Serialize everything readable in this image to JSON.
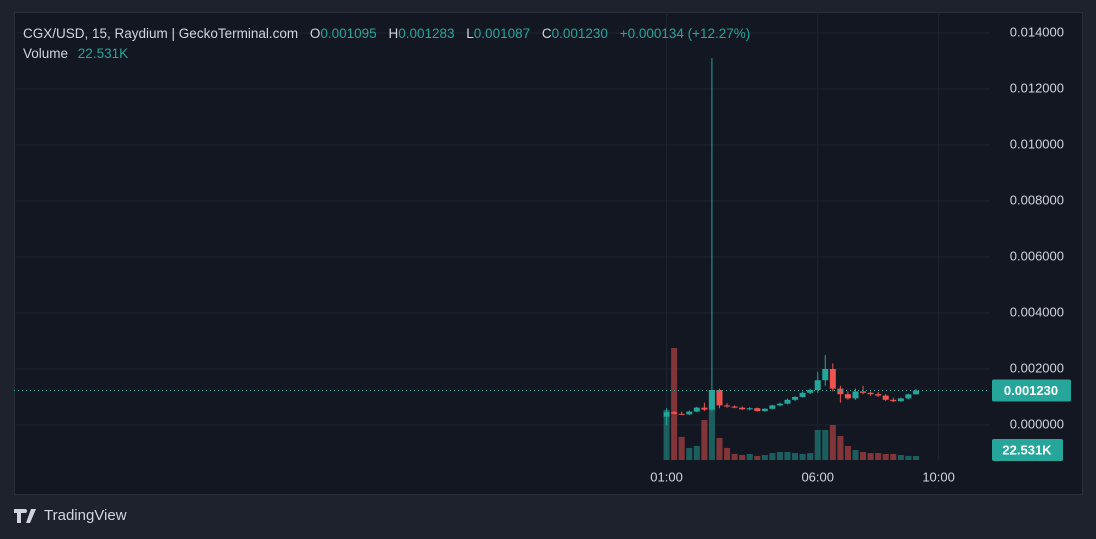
{
  "chart_data": {
    "type": "candlestick",
    "title": "CGX/USD, 15, Raydium | GeckoTerminal.com",
    "legend": {
      "o": "O",
      "open": "0.001095",
      "h": "H",
      "high": "0.001283",
      "l": "L",
      "low": "0.001087",
      "c": "C",
      "close": "0.001230",
      "change": "+0.000134 (+12.27%)",
      "volume_name": "Volume",
      "volume": "22.531K"
    },
    "x": [
      1,
      1.25,
      1.5,
      1.75,
      2,
      2.25,
      2.5,
      2.75,
      3,
      3.25,
      3.5,
      3.75,
      4,
      4.25,
      4.5,
      4.75,
      5,
      5.25,
      5.5,
      5.75,
      6,
      6.25,
      6.5,
      6.75,
      7,
      7.25,
      7.5,
      7.75,
      8,
      8.25,
      8.5,
      8.75,
      9,
      9.25
    ],
    "open": [
      0.0003,
      0.00046,
      0.0004,
      0.00038,
      0.00048,
      0.00062,
      0.00055,
      0.00125,
      0.0007,
      0.00066,
      0.00062,
      0.00056,
      0.0006,
      0.0005,
      0.00058,
      0.0007,
      0.00076,
      0.0009,
      0.001,
      0.00115,
      0.00125,
      0.0016,
      0.002,
      0.0013,
      0.0011,
      0.00095,
      0.0012,
      0.00115,
      0.0011,
      0.00105,
      0.0009,
      0.00085,
      0.00095,
      0.001095
    ],
    "high": [
      0.0006,
      0.0005,
      0.00048,
      0.00052,
      0.00065,
      0.0008,
      0.0131,
      0.0013,
      0.00078,
      0.0007,
      0.00066,
      0.00064,
      0.00062,
      0.0006,
      0.00072,
      0.0008,
      0.00095,
      0.00104,
      0.0012,
      0.0013,
      0.0019,
      0.0025,
      0.0022,
      0.0014,
      0.0012,
      0.0013,
      0.0014,
      0.0012,
      0.00118,
      0.0011,
      0.00098,
      0.00098,
      0.00112,
      0.001283
    ],
    "low": [
      0.0,
      0.00038,
      0.00036,
      0.00035,
      0.00045,
      0.0005,
      0.0005,
      0.0006,
      0.00062,
      0.0006,
      0.00054,
      0.00052,
      0.00048,
      0.00048,
      0.00056,
      0.00066,
      0.00074,
      0.00086,
      0.00098,
      0.0011,
      0.00115,
      0.0014,
      0.0012,
      0.0008,
      0.0009,
      0.0009,
      0.0011,
      0.00105,
      0.001,
      0.00085,
      0.00082,
      0.00083,
      0.00092,
      0.001087
    ],
    "close": [
      0.00046,
      0.0004,
      0.00038,
      0.00048,
      0.00062,
      0.00055,
      0.00125,
      0.0007,
      0.00066,
      0.00062,
      0.00056,
      0.0006,
      0.0005,
      0.00058,
      0.0007,
      0.00076,
      0.0009,
      0.001,
      0.00115,
      0.00125,
      0.0016,
      0.002,
      0.0013,
      0.0011,
      0.00095,
      0.0012,
      0.00115,
      0.0011,
      0.00105,
      0.0009,
      0.00085,
      0.00095,
      0.001095,
      0.00123
    ],
    "volume": [
      282000,
      630000,
      130000,
      68000,
      79000,
      225000,
      394000,
      124000,
      68000,
      34000,
      28000,
      34000,
      23000,
      28000,
      39000,
      45000,
      45000,
      39000,
      34000,
      39000,
      169000,
      169000,
      197000,
      135000,
      79000,
      56000,
      45000,
      39000,
      39000,
      34000,
      34000,
      28000,
      23000,
      22531
    ],
    "up_color": "#26a69a",
    "down_color": "#ef5350",
    "xlim": [
      -20.59,
      11.7
    ],
    "xticks": [
      {
        "value": 1,
        "label": "01:00"
      },
      {
        "value": 6,
        "label": "06:00"
      },
      {
        "value": 10,
        "label": "10:00"
      }
    ],
    "ylim": [
      -0.00125,
      0.01475
    ],
    "yticks": [
      {
        "value": 0,
        "label": "0.000000"
      },
      {
        "value": 0.002,
        "label": "0.002000"
      },
      {
        "value": 0.004,
        "label": "0.004000"
      },
      {
        "value": 0.006,
        "label": "0.006000"
      },
      {
        "value": 0.008,
        "label": "0.008000"
      },
      {
        "value": 0.01,
        "label": "0.010000"
      },
      {
        "value": 0.012,
        "label": "0.012000"
      },
      {
        "value": 0.014,
        "label": "0.014000"
      }
    ],
    "volume_ylim": [
      0,
      2520000
    ],
    "grid": true,
    "last_price": 0.00123,
    "last_price_label": "0.001230",
    "last_volume_label": "22.531K",
    "watermark": "TradingView"
  }
}
